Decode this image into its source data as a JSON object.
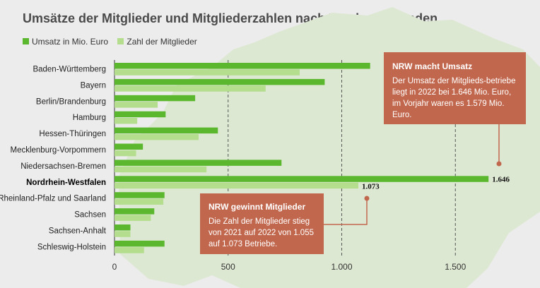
{
  "chart_data": {
    "type": "bar",
    "orientation": "horizontal",
    "title": "Umsätze der Mitglieder und Mitgliederzahlen nach Landesverbänden",
    "categories": [
      "Baden-Württemberg",
      "Bayern",
      "Berlin/Brandenburg",
      "Hamburg",
      "Hessen-Thüringen",
      "Mecklenburg-Vorpommern",
      "Niedersachsen-Bremen",
      "Nordrhein-Westfalen",
      "Rheinland-Pfalz und Saarland",
      "Sachsen",
      "Sachsen-Anhalt",
      "Schleswig-Holstein"
    ],
    "highlight_category": "Nordrhein-Westfalen",
    "series": [
      {
        "name": "Umsatz in Mio. Euro",
        "color": "#5bb82e",
        "values": [
          1125,
          925,
          355,
          225,
          455,
          125,
          735,
          1646,
          220,
          175,
          70,
          220
        ]
      },
      {
        "name": "Zahl der Mitglieder",
        "color": "#b4dd8e",
        "values": [
          815,
          665,
          190,
          100,
          370,
          95,
          405,
          1073,
          215,
          160,
          70,
          130
        ]
      }
    ],
    "data_labels": {
      "umsatz_nrw": "1.646",
      "mitglieder_nrw": "1.073"
    },
    "xlim": [
      0,
      1800
    ],
    "xticks": [
      0,
      500,
      1000,
      1500
    ],
    "xtick_labels": [
      "0",
      "500",
      "1.000",
      "1.500"
    ],
    "grid": "vertical dashed",
    "legend_position": "top-left",
    "annotations": [
      {
        "title": "NRW macht Umsatz",
        "text": "Der Umsatz der Mitglieds-betriebe liegt in 2022 bei 1.646 Mio. Euro, im Vorjahr waren es 1.579 Mio. Euro.",
        "points_to": "Umsatz in Mio. Euro / Nordrhein-Westfalen"
      },
      {
        "title": "NRW gewinnt Mitglieder",
        "text": "Die Zahl der Mitglieder stieg von 2021 auf 2022 von 1.055 auf 1.073 Betriebe.",
        "points_to": "Zahl der Mitglieder / Nordrhein-Westfalen"
      }
    ]
  },
  "colors": {
    "callout": "#c1674d",
    "connector": "#c1674d",
    "background": "#ececec",
    "map": "#dde8d2"
  }
}
